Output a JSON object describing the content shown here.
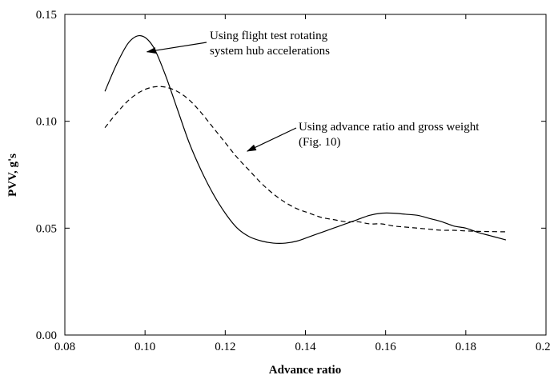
{
  "chart_data": {
    "type": "line",
    "xlabel": "Advance ratio",
    "ylabel": "PVV, g's",
    "xlim": [
      0.08,
      0.2
    ],
    "ylim": [
      0.0,
      0.15
    ],
    "xticks": [
      0.08,
      0.1,
      0.12,
      0.14,
      0.16,
      0.18,
      0.2
    ],
    "xtick_labels": [
      "0.08",
      "0.10",
      "0.12",
      "0.14",
      "0.16",
      "0.18",
      "0.20"
    ],
    "yticks": [
      0.0,
      0.05,
      0.1,
      0.15
    ],
    "ytick_labels": [
      "0.00",
      "0.05",
      "0.10",
      "0.15"
    ],
    "grid": false,
    "series": [
      {
        "style": "solid",
        "x": [
          0.09,
          0.093,
          0.096,
          0.099,
          0.102,
          0.105,
          0.108,
          0.111,
          0.114,
          0.117,
          0.12,
          0.123,
          0.126,
          0.129,
          0.132,
          0.135,
          0.138,
          0.141,
          0.144,
          0.147,
          0.15,
          0.153,
          0.156,
          0.159,
          0.162,
          0.165,
          0.168,
          0.171,
          0.174,
          0.177,
          0.18,
          0.183,
          0.186,
          0.189,
          0.19
        ],
        "y": [
          0.114,
          0.127,
          0.137,
          0.14,
          0.135,
          0.122,
          0.106,
          0.09,
          0.077,
          0.066,
          0.057,
          0.05,
          0.046,
          0.044,
          0.043,
          0.043,
          0.044,
          0.046,
          0.048,
          0.05,
          0.052,
          0.054,
          0.056,
          0.057,
          0.057,
          0.0565,
          0.056,
          0.0545,
          0.053,
          0.051,
          0.05,
          0.048,
          0.0465,
          0.045,
          0.0445
        ]
      },
      {
        "style": "dashed",
        "x": [
          0.09,
          0.093,
          0.096,
          0.099,
          0.102,
          0.105,
          0.108,
          0.111,
          0.114,
          0.117,
          0.12,
          0.123,
          0.126,
          0.129,
          0.132,
          0.135,
          0.138,
          0.141,
          0.144,
          0.147,
          0.15,
          0.153,
          0.156,
          0.159,
          0.162,
          0.165,
          0.168,
          0.171,
          0.174,
          0.177,
          0.18,
          0.183,
          0.186,
          0.189,
          0.19
        ],
        "y": [
          0.097,
          0.104,
          0.11,
          0.114,
          0.116,
          0.116,
          0.114,
          0.11,
          0.104,
          0.097,
          0.09,
          0.083,
          0.077,
          0.071,
          0.066,
          0.062,
          0.059,
          0.057,
          0.055,
          0.054,
          0.053,
          0.053,
          0.052,
          0.052,
          0.051,
          0.0505,
          0.05,
          0.0495,
          0.049,
          0.049,
          0.0487,
          0.0485,
          0.0484,
          0.0483,
          0.0483
        ]
      }
    ],
    "annotations": [
      {
        "lines": [
          "Using flight test rotating",
          "system hub accelerations"
        ],
        "arrow_to": [
          0.1005,
          0.1325
        ]
      },
      {
        "lines": [
          "Using advance ratio and gross weight",
          "(Fig. 10)"
        ],
        "arrow_to": [
          0.1255,
          0.086
        ]
      }
    ]
  }
}
